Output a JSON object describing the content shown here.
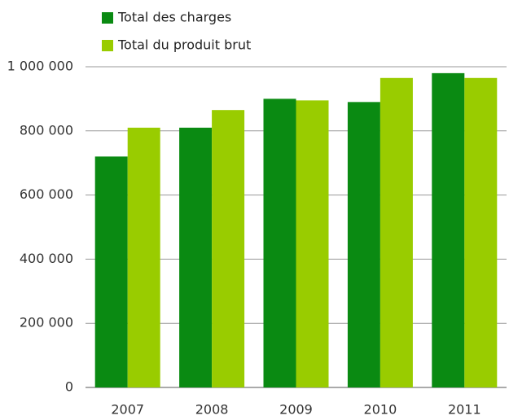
{
  "chart_data": {
    "type": "bar",
    "categories": [
      "2007",
      "2008",
      "2009",
      "2010",
      "2011"
    ],
    "series": [
      {
        "name": "Total des charges",
        "color": "#0a8a12",
        "values": [
          720000,
          810000,
          900000,
          890000,
          980000
        ]
      },
      {
        "name": "Total du produit brut",
        "color": "#99cc00",
        "values": [
          810000,
          865000,
          895000,
          965000,
          965000
        ]
      }
    ],
    "ylim": [
      0,
      1000000
    ],
    "yticks": [
      0,
      {
        "value": 200000,
        "label": "200 000"
      },
      {
        "value": 400000,
        "label": "400 000"
      },
      {
        "value": 600000,
        "label": "600 000"
      },
      {
        "value": 800000,
        "label": "800 000"
      },
      {
        "value": 1000000,
        "label": "1 000 000"
      }
    ],
    "grid": true,
    "legend": "top-left"
  }
}
